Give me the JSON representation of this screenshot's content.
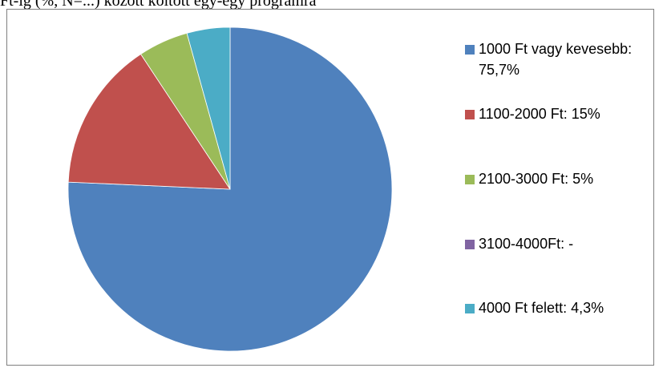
{
  "top_caption": "Ft-ig (%, N=...) között költött egy-egy programra",
  "chart_data": {
    "type": "pie",
    "title": "",
    "categories": [
      "1000 Ft vagy kevesebb",
      "1100-2000 Ft",
      "2100-3000 Ft",
      "3100-4000Ft",
      "4000 Ft felett"
    ],
    "values": [
      75.7,
      15,
      5,
      0,
      4.3
    ],
    "colors": [
      "#4f81bd",
      "#c0504d",
      "#9bbb59",
      "#8064a2",
      "#4bacc6"
    ],
    "start_angle": "12 o'clock",
    "direction": "clockwise",
    "legend_position": "right",
    "legend": [
      {
        "label": "1000 Ft vagy kevesebb: 75,7%",
        "color": "#4f81bd"
      },
      {
        "label": "1100-2000 Ft: 15%",
        "color": "#c0504d"
      },
      {
        "label": "2100-3000 Ft: 5%",
        "color": "#9bbb59"
      },
      {
        "label": "3100-4000Ft: -",
        "color": "#8064a2"
      },
      {
        "label": "4000 Ft felett: 4,3%",
        "color": "#4bacc6"
      }
    ]
  }
}
